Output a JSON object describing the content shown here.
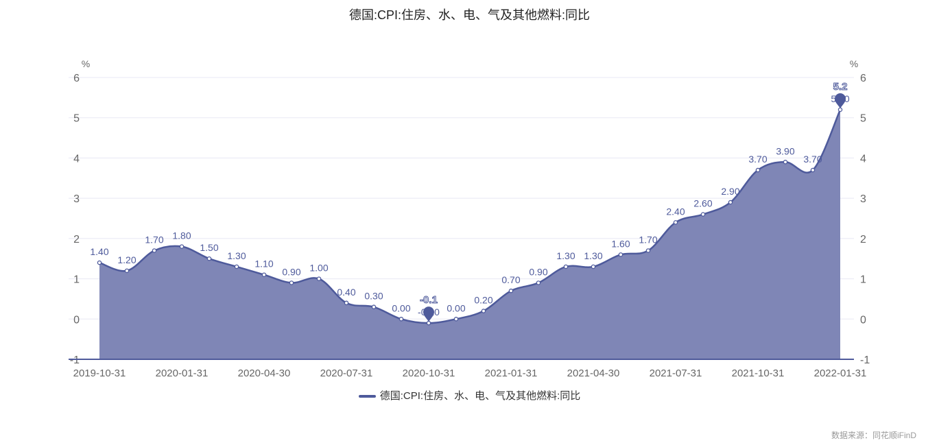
{
  "title": "德国:CPI:住房、水、电、气及其他燃料:同比",
  "source": "数据来源：同花顺iFinD",
  "colors": {
    "line": "#4e5a9b",
    "area": "#7f86b6",
    "grid": "#e8e8f4",
    "axis": "#666666",
    "label": "#4e5a9b"
  },
  "chart_data": {
    "type": "area",
    "title": "德国:CPI:住房、水、电、气及其他燃料:同比",
    "legend": [
      "德国:CPI:住房、水、电、气及其他燃料:同比"
    ],
    "legend_position": "bottom-center",
    "ylabel_left": "%",
    "ylabel_right": "%",
    "ylim": [
      -1,
      6
    ],
    "yticks": [
      -1,
      0,
      1,
      2,
      3,
      4,
      5,
      6
    ],
    "grid": true,
    "x": [
      "2019-10-31",
      "2019-11-30",
      "2019-12-31",
      "2020-01-31",
      "2020-02-29",
      "2020-03-31",
      "2020-04-30",
      "2020-05-31",
      "2020-06-30",
      "2020-07-31",
      "2020-08-31",
      "2020-09-30",
      "2020-10-31",
      "2020-11-30",
      "2020-12-31",
      "2021-01-31",
      "2021-02-28",
      "2021-03-31",
      "2021-04-30",
      "2021-05-31",
      "2021-06-30",
      "2021-07-31",
      "2021-08-31",
      "2021-09-30",
      "2021-10-31",
      "2021-11-30",
      "2021-12-31",
      "2022-01-31"
    ],
    "xtick_labels": [
      "2019-10-31",
      "2020-01-31",
      "2020-04-30",
      "2020-07-31",
      "2020-10-31",
      "2021-01-31",
      "2021-04-30",
      "2021-07-31",
      "2021-10-31",
      "2022-01-31"
    ],
    "values": [
      1.4,
      1.2,
      1.7,
      1.8,
      1.5,
      1.3,
      1.1,
      0.9,
      1.0,
      0.4,
      0.3,
      0.0,
      -0.1,
      0.0,
      0.2,
      0.7,
      0.9,
      1.3,
      1.3,
      1.6,
      1.7,
      2.4,
      2.6,
      2.9,
      3.7,
      3.9,
      3.7,
      5.2
    ],
    "data_labels": [
      "1.40",
      "1.20",
      "1.70",
      "1.80",
      "1.50",
      "1.30",
      "1.10",
      "0.90",
      "1.00",
      "0.40",
      "0.30",
      "0.00",
      "-0.10",
      "0.00",
      "0.20",
      "0.70",
      "0.90",
      "1.30",
      "1.30",
      "1.60",
      "1.70",
      "2.40",
      "2.60",
      "2.90",
      "3.70",
      "3.90",
      "3.70",
      "5.20"
    ],
    "markers": [
      {
        "type": "max",
        "index": 27,
        "label": "5.2"
      },
      {
        "type": "min",
        "index": 12,
        "label": "-0.1"
      }
    ]
  }
}
